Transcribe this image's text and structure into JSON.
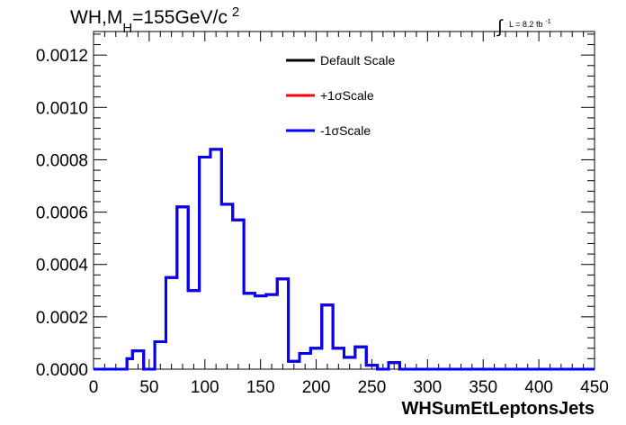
{
  "chart_data": {
    "type": "line",
    "title_parts": {
      "main": "WH,M",
      "sub": "H",
      "rest": "=155GeV/c",
      "sup": "2"
    },
    "luminosity": {
      "integral": "∫",
      "text": "L = 8.2 fb",
      "sup": "-1"
    },
    "xlabel": "WHSumEtLeptonsJets",
    "ylabel": "",
    "xlim": [
      0,
      450
    ],
    "ylim": [
      0,
      0.00129
    ],
    "x_ticks": [
      0,
      50,
      100,
      150,
      200,
      250,
      300,
      350,
      400,
      450
    ],
    "x_tick_labels": [
      "0",
      "50",
      "100",
      "150",
      "200",
      "250",
      "300",
      "350",
      "400",
      "450"
    ],
    "y_ticks": [
      0,
      0.0002,
      0.0004,
      0.0006,
      0.0008,
      0.001,
      0.0012
    ],
    "y_tick_labels": [
      "0.0000",
      "0.0002",
      "0.0004",
      "0.0006",
      "0.0008",
      "0.0010",
      "0.0012"
    ],
    "bin_edges": [
      0,
      5,
      10,
      15,
      20,
      25,
      30,
      35,
      40,
      45,
      50,
      55,
      60,
      65,
      70,
      75,
      80,
      85,
      90,
      95,
      100,
      105,
      110,
      115,
      120,
      125,
      130,
      135,
      140,
      145,
      150,
      155,
      160,
      165,
      170,
      175,
      180,
      185,
      190,
      195,
      200,
      205,
      210,
      215,
      220,
      225,
      230,
      235,
      240,
      245,
      250,
      255,
      260,
      265,
      270,
      275,
      280,
      285,
      290,
      295,
      300,
      305,
      310,
      315,
      320,
      325,
      330,
      335,
      340,
      345,
      350,
      355,
      360,
      365,
      370,
      375,
      380,
      385,
      390,
      395,
      400,
      405,
      410,
      415,
      420,
      425,
      430,
      435,
      440,
      445,
      450
    ],
    "series": [
      {
        "name": "Default Scale",
        "color": "#000000",
        "values": [
          0,
          0,
          0,
          0,
          0,
          0,
          4e-05,
          7e-05,
          7e-05,
          0,
          0,
          0.000105,
          0.000105,
          0.00035,
          0.00035,
          0.00062,
          0.00062,
          0.0003,
          0.0003,
          0.00081,
          0.00081,
          0.00084,
          0.00084,
          0.00063,
          0.00063,
          0.00057,
          0.00057,
          0.00029,
          0.00029,
          0.00028,
          0.00028,
          0.000285,
          0.000285,
          0.000345,
          0.000345,
          3e-05,
          3e-05,
          6e-05,
          6e-05,
          8e-05,
          8e-05,
          0.000245,
          0.000245,
          8e-05,
          8e-05,
          4.5e-05,
          4.5e-05,
          8.5e-05,
          8.5e-05,
          1.5e-05,
          1.5e-05,
          0,
          0,
          2.5e-05,
          2.5e-05,
          0,
          0,
          0,
          0,
          0,
          0,
          0,
          0,
          0,
          0,
          0,
          0,
          0,
          0,
          0,
          0,
          0,
          0,
          0,
          0,
          0,
          0,
          0,
          0,
          0,
          0,
          0,
          0,
          0,
          0,
          0,
          0,
          0,
          0,
          0
        ]
      },
      {
        "name": "+1σScale",
        "color": "#ff0000",
        "values": [
          0,
          0,
          0,
          0,
          0,
          0,
          4e-05,
          7e-05,
          7e-05,
          0,
          0,
          0.000105,
          0.000105,
          0.00035,
          0.00035,
          0.00062,
          0.00062,
          0.0003,
          0.0003,
          0.00081,
          0.00081,
          0.00084,
          0.00084,
          0.00063,
          0.00063,
          0.00057,
          0.00057,
          0.00029,
          0.00029,
          0.00028,
          0.00028,
          0.000285,
          0.000285,
          0.000345,
          0.000345,
          3e-05,
          3e-05,
          6e-05,
          6e-05,
          8e-05,
          8e-05,
          0.000245,
          0.000245,
          8e-05,
          8e-05,
          4.5e-05,
          4.5e-05,
          8.5e-05,
          8.5e-05,
          1.5e-05,
          1.5e-05,
          0,
          0,
          2.5e-05,
          2.5e-05,
          0,
          0,
          0,
          0,
          0,
          0,
          0,
          0,
          0,
          0,
          0,
          0,
          0,
          0,
          0,
          0,
          0,
          0,
          0,
          0,
          0,
          0,
          0,
          0,
          0,
          0,
          0,
          0,
          0,
          0,
          0,
          0,
          0,
          0,
          0
        ]
      },
      {
        "name": "-1σScale",
        "color": "#0000ff",
        "values": [
          0,
          0,
          0,
          0,
          0,
          0,
          4e-05,
          7e-05,
          7e-05,
          0,
          0,
          0.000105,
          0.000105,
          0.00035,
          0.00035,
          0.00062,
          0.00062,
          0.0003,
          0.0003,
          0.00081,
          0.00081,
          0.00084,
          0.00084,
          0.00063,
          0.00063,
          0.00057,
          0.00057,
          0.00029,
          0.00029,
          0.00028,
          0.00028,
          0.000285,
          0.000285,
          0.000345,
          0.000345,
          3e-05,
          3e-05,
          6e-05,
          6e-05,
          8e-05,
          8e-05,
          0.000245,
          0.000245,
          8e-05,
          8e-05,
          4.5e-05,
          4.5e-05,
          8.5e-05,
          8.5e-05,
          1.5e-05,
          1.5e-05,
          0,
          0,
          2.5e-05,
          2.5e-05,
          0,
          0,
          0,
          0,
          0,
          0,
          0,
          0,
          0,
          0,
          0,
          0,
          0,
          0,
          0,
          0,
          0,
          0,
          0,
          0,
          0,
          0,
          0,
          0,
          0,
          0,
          0,
          0,
          0,
          0,
          0,
          0,
          0,
          0,
          0
        ]
      }
    ],
    "legend": {
      "placement": "top-center",
      "entries": [
        "Default Scale",
        "+1σScale",
        "-1σScale"
      ]
    },
    "grid": false
  }
}
